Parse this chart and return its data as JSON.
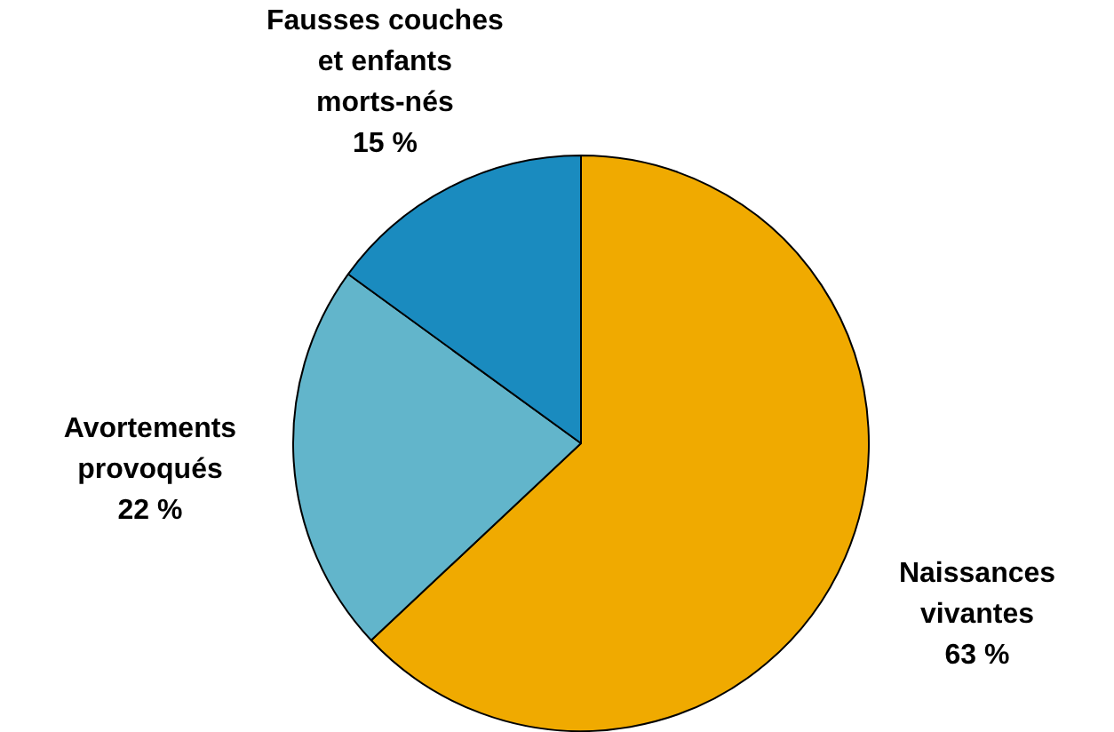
{
  "chart_data": {
    "type": "pie",
    "categories": [
      "Naissances vivantes",
      "Avortements provoqués",
      "Fausses couches et enfants morts-nés"
    ],
    "values": [
      63,
      22,
      15
    ],
    "colors": [
      "#f0aa00",
      "#62b5cb",
      "#1a8bbf"
    ],
    "value_labels": [
      "63 %",
      "22 %",
      "15 %"
    ],
    "legend": false
  }
}
